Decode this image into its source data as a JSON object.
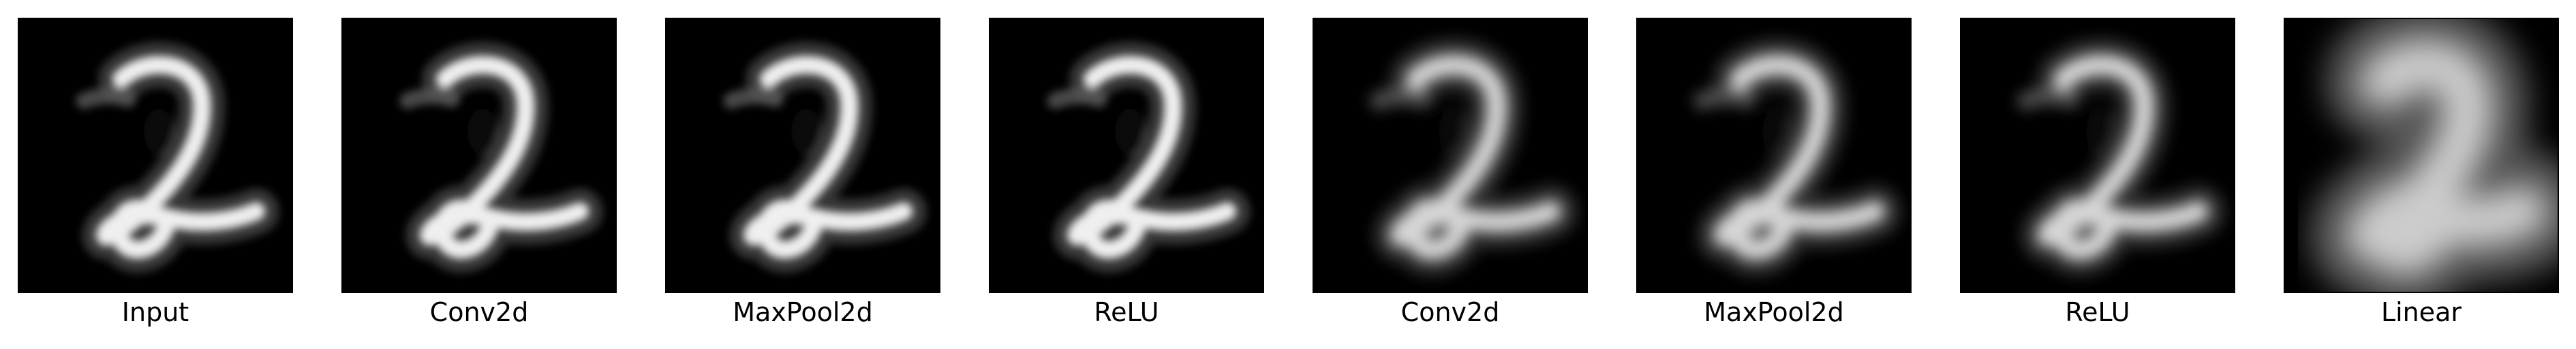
{
  "panels": [
    {
      "label": "Input",
      "variant": "sharp"
    },
    {
      "label": "Conv2d",
      "variant": "sharp"
    },
    {
      "label": "MaxPool2d",
      "variant": "sharp"
    },
    {
      "label": "ReLU",
      "variant": "sharp"
    },
    {
      "label": "Conv2d",
      "variant": "soft"
    },
    {
      "label": "MaxPool2d",
      "variant": "soft"
    },
    {
      "label": "ReLU",
      "variant": "soft"
    },
    {
      "label": "Linear",
      "variant": "diffuse"
    }
  ],
  "colors": {
    "background": "#000000",
    "digit": "#ffffff",
    "caption": "#000000"
  },
  "depicted_digit": "2"
}
